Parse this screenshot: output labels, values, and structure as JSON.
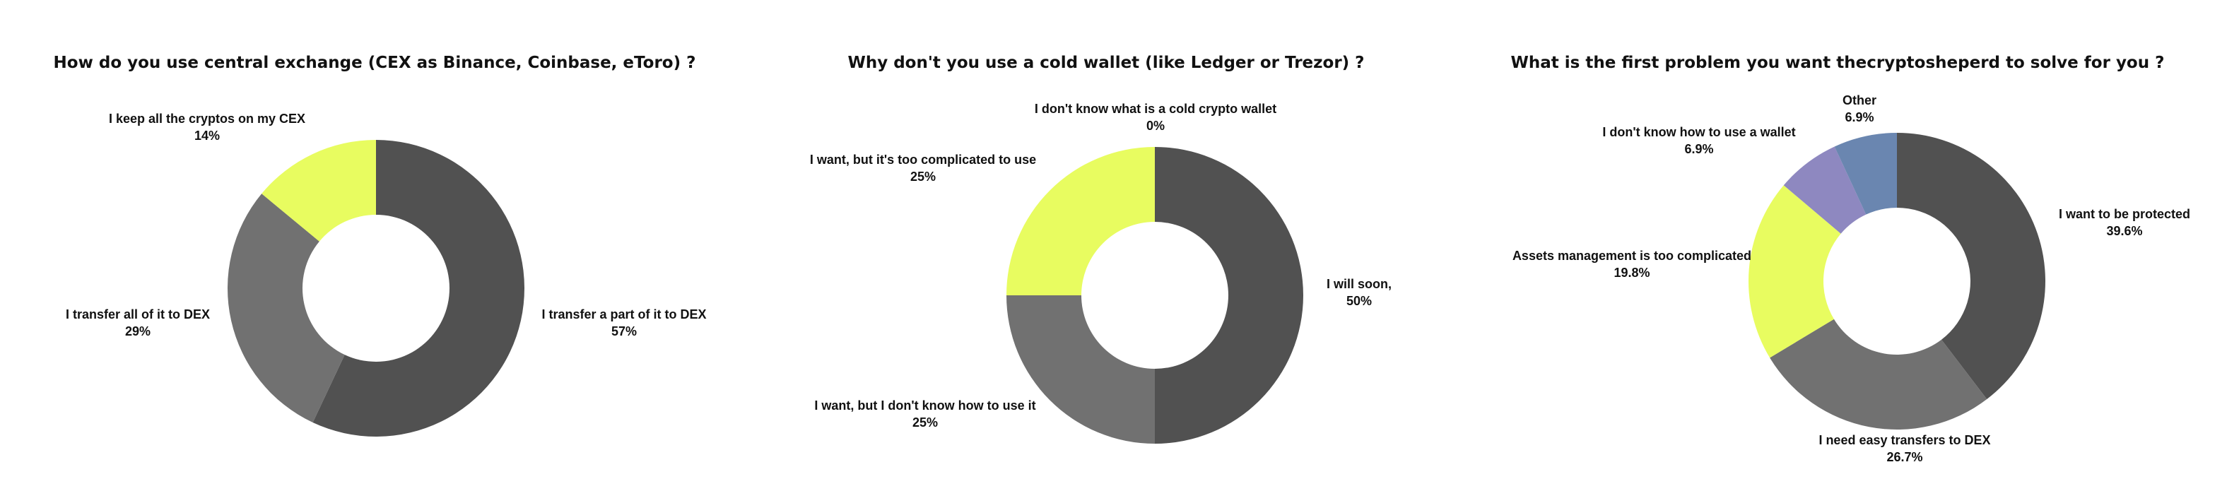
{
  "chart_data": [
    {
      "type": "pie",
      "donut": true,
      "title": "How do you use central exchange (CEX as Binance, Coinbase, eToro) ?",
      "slices": [
        {
          "label": "I transfer a part of it to DEX",
          "value": 57,
          "value_label": "57%",
          "color": "#515151"
        },
        {
          "label": "I transfer all of it to DEX",
          "value": 29,
          "value_label": "29%",
          "color": "#717171"
        },
        {
          "label": "I keep all the cryptos on my CEX",
          "value": 14,
          "value_label": "14%",
          "color": "#e8fc60"
        }
      ]
    },
    {
      "type": "pie",
      "donut": true,
      "title": "Why don't you use a cold wallet (like Ledger or Trezor) ?",
      "slices": [
        {
          "label": "I will soon,",
          "value": 50,
          "value_label": "50%",
          "color": "#515151"
        },
        {
          "label": "I want, but I don't know how to use it",
          "value": 25,
          "value_label": "25%",
          "color": "#717171"
        },
        {
          "label": "I want, but it's too complicated to use",
          "value": 25,
          "value_label": "25%",
          "color": "#e8fc60"
        },
        {
          "label": "I don't know what is a cold crypto wallet",
          "value": 0,
          "value_label": "0%",
          "color": "#8e88c0"
        }
      ]
    },
    {
      "type": "pie",
      "donut": true,
      "title": "What is the first problem you want thecryptosheperd to solve for you ?",
      "slices": [
        {
          "label": "I want to be protected",
          "value": 39.6,
          "value_label": "39.6%",
          "color": "#515151"
        },
        {
          "label": "I need easy transfers to DEX",
          "value": 26.7,
          "value_label": "26.7%",
          "color": "#717171"
        },
        {
          "label": "Assets management is too complicated",
          "value": 19.8,
          "value_label": "19.8%",
          "color": "#e8fc60"
        },
        {
          "label": "I don't know how to use a wallet",
          "value": 6.9,
          "value_label": "6.9%",
          "color": "#8e88c0"
        },
        {
          "label": "Other",
          "value": 6.9,
          "value_label": "6.9%",
          "color": "#6a86b0"
        }
      ]
    }
  ]
}
